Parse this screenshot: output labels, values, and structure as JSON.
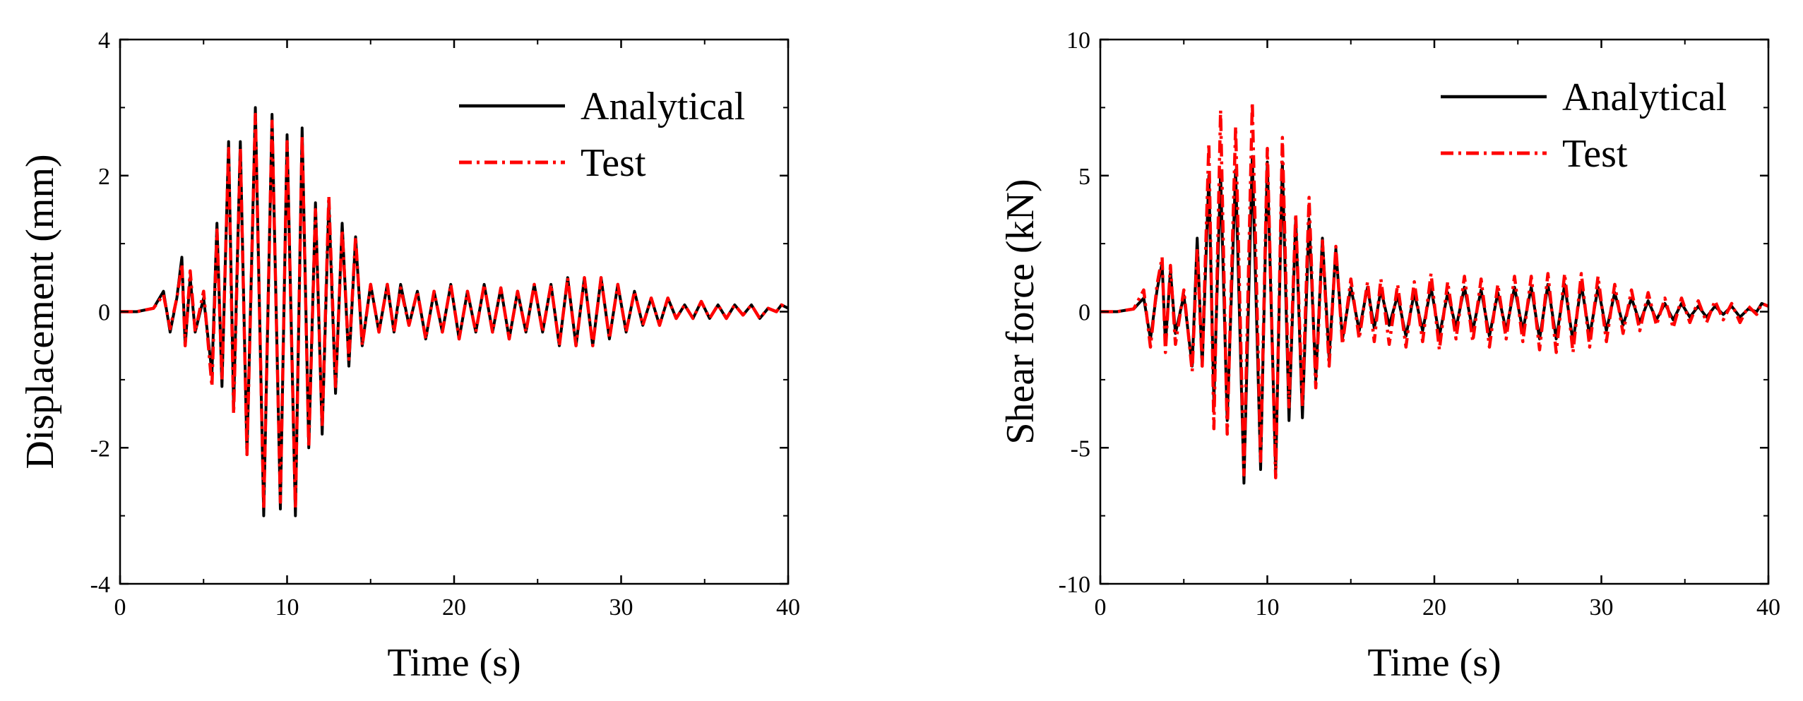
{
  "chart_data": [
    {
      "type": "line",
      "title": "",
      "xlabel": "Time (s)",
      "ylabel": "Displacement (mm)",
      "xlim": [
        0,
        40
      ],
      "ylim": [
        -4,
        4
      ],
      "xticks": [
        0,
        10,
        20,
        30,
        40
      ],
      "yticks": [
        -4,
        -2,
        0,
        2,
        4
      ],
      "grid": false,
      "legend_position": "top-right",
      "series": [
        {
          "name": "Analytical",
          "color": "#000000",
          "dash": "solid",
          "x": [
            0,
            1,
            2,
            2.6,
            3,
            3.4,
            3.7,
            3.9,
            4.2,
            4.5,
            5,
            5.5,
            5.8,
            6.1,
            6.5,
            6.8,
            7.2,
            7.6,
            8.1,
            8.6,
            9.1,
            9.6,
            10.0,
            10.5,
            10.9,
            11.3,
            11.7,
            12.1,
            12.5,
            12.9,
            13.3,
            13.7,
            14.1,
            14.5,
            15.0,
            15.5,
            16.0,
            16.4,
            16.8,
            17.3,
            17.8,
            18.3,
            18.8,
            19.3,
            19.8,
            20.3,
            20.8,
            21.3,
            21.8,
            22.3,
            22.8,
            23.3,
            23.8,
            24.3,
            24.8,
            25.3,
            25.8,
            26.3,
            26.8,
            27.3,
            27.8,
            28.3,
            28.8,
            29.3,
            29.8,
            30.3,
            30.8,
            31.3,
            31.8,
            32.3,
            32.8,
            33.3,
            33.8,
            34.3,
            34.8,
            35.3,
            35.8,
            36.3,
            36.8,
            37.3,
            37.8,
            38.3,
            38.8,
            39.3,
            39.6,
            40
          ],
          "y": [
            0,
            0,
            0.05,
            0.3,
            -0.3,
            0.2,
            0.8,
            -0.5,
            0.5,
            -0.3,
            0.2,
            -0.9,
            1.3,
            -1.1,
            2.5,
            -1.4,
            2.5,
            -2.1,
            3.0,
            -3.0,
            2.9,
            -2.9,
            2.6,
            -3.0,
            2.7,
            -2.0,
            1.6,
            -1.8,
            1.6,
            -1.2,
            1.3,
            -0.8,
            1.1,
            -0.5,
            0.4,
            -0.3,
            0.4,
            -0.3,
            0.4,
            -0.2,
            0.3,
            -0.4,
            0.3,
            -0.3,
            0.4,
            -0.4,
            0.3,
            -0.3,
            0.4,
            -0.3,
            0.35,
            -0.4,
            0.3,
            -0.3,
            0.4,
            -0.3,
            0.4,
            -0.5,
            0.5,
            -0.5,
            0.5,
            -0.5,
            0.5,
            -0.4,
            0.4,
            -0.3,
            0.3,
            -0.2,
            0.2,
            -0.2,
            0.2,
            -0.1,
            0.1,
            -0.1,
            0.15,
            -0.1,
            0.1,
            -0.1,
            0.1,
            -0.05,
            0.1,
            -0.1,
            0.05,
            0,
            0.1,
            0.05
          ]
        },
        {
          "name": "Test",
          "color": "#ff0000",
          "dash": "dash-dot",
          "x": [
            0,
            1,
            2,
            2.6,
            3,
            3.4,
            3.7,
            3.9,
            4.2,
            4.5,
            5,
            5.5,
            5.8,
            6.1,
            6.5,
            6.8,
            7.2,
            7.6,
            8.1,
            8.6,
            9.1,
            9.6,
            10.0,
            10.5,
            10.9,
            11.3,
            11.7,
            12.1,
            12.5,
            12.9,
            13.3,
            13.7,
            14.1,
            14.5,
            15.0,
            15.5,
            16.0,
            16.4,
            16.8,
            17.3,
            17.8,
            18.3,
            18.8,
            19.3,
            19.8,
            20.3,
            20.8,
            21.3,
            21.8,
            22.3,
            22.8,
            23.3,
            23.8,
            24.3,
            24.8,
            25.3,
            25.8,
            26.3,
            26.8,
            27.3,
            27.8,
            28.3,
            28.8,
            29.3,
            29.8,
            30.3,
            30.8,
            31.3,
            31.8,
            32.3,
            32.8,
            33.3,
            33.8,
            34.3,
            34.8,
            35.3,
            35.8,
            36.3,
            36.8,
            37.3,
            37.8,
            38.3,
            38.8,
            39.3,
            39.6,
            40
          ],
          "y": [
            0,
            0,
            0.05,
            0.25,
            -0.25,
            0.2,
            0.7,
            -0.5,
            0.6,
            -0.3,
            0.3,
            -1.1,
            1.2,
            -1.0,
            2.4,
            -1.5,
            2.4,
            -2.1,
            2.9,
            -2.9,
            2.8,
            -2.8,
            2.5,
            -2.9,
            2.6,
            -2.0,
            1.5,
            -1.7,
            1.7,
            -1.1,
            1.2,
            -0.7,
            1.1,
            -0.5,
            0.4,
            -0.3,
            0.4,
            -0.3,
            0.35,
            -0.2,
            0.3,
            -0.4,
            0.3,
            -0.3,
            0.4,
            -0.4,
            0.3,
            -0.3,
            0.4,
            -0.3,
            0.35,
            -0.4,
            0.3,
            -0.3,
            0.4,
            -0.3,
            0.4,
            -0.5,
            0.5,
            -0.5,
            0.5,
            -0.5,
            0.5,
            -0.4,
            0.4,
            -0.3,
            0.3,
            -0.2,
            0.2,
            -0.2,
            0.2,
            -0.1,
            0.1,
            -0.1,
            0.15,
            -0.1,
            0.1,
            -0.1,
            0.1,
            -0.05,
            0.1,
            -0.1,
            0.05,
            0,
            0.1,
            0.05
          ]
        }
      ]
    },
    {
      "type": "line",
      "title": "",
      "xlabel": "Time (s)",
      "ylabel": "Shear force (kN)",
      "xlim": [
        0,
        40
      ],
      "ylim": [
        -10,
        10
      ],
      "xticks": [
        0,
        10,
        20,
        30,
        40
      ],
      "yticks": [
        -10,
        -5,
        0,
        5,
        10
      ],
      "grid": false,
      "legend_position": "top-right",
      "series": [
        {
          "name": "Analytical",
          "color": "#000000",
          "dash": "solid",
          "x": [
            0,
            1,
            2,
            2.6,
            3,
            3.4,
            3.7,
            3.9,
            4.2,
            4.5,
            5,
            5.5,
            5.8,
            6.1,
            6.5,
            6.8,
            7.2,
            7.6,
            8.1,
            8.6,
            9.1,
            9.6,
            10.0,
            10.5,
            10.9,
            11.3,
            11.7,
            12.1,
            12.5,
            12.9,
            13.3,
            13.7,
            14.1,
            14.5,
            15.0,
            15.5,
            16.0,
            16.4,
            16.8,
            17.3,
            17.8,
            18.3,
            18.8,
            19.3,
            19.8,
            20.3,
            20.8,
            21.3,
            21.8,
            22.3,
            22.8,
            23.3,
            23.8,
            24.3,
            24.8,
            25.3,
            25.8,
            26.3,
            26.8,
            27.3,
            27.8,
            28.3,
            28.8,
            29.3,
            29.8,
            30.3,
            30.8,
            31.3,
            31.8,
            32.3,
            32.8,
            33.3,
            33.8,
            34.3,
            34.8,
            35.3,
            35.8,
            36.3,
            36.8,
            37.3,
            37.8,
            38.3,
            38.8,
            39.3,
            39.6,
            40
          ],
          "y": [
            0,
            0,
            0.1,
            0.5,
            -1.0,
            0.8,
            1.8,
            -1.2,
            1.5,
            -0.8,
            0.6,
            -2.0,
            2.7,
            -2.0,
            5.0,
            -3.3,
            5.1,
            -4.0,
            5.2,
            -6.3,
            5.7,
            -5.8,
            5.5,
            -5.9,
            5.5,
            -4.0,
            3.4,
            -3.9,
            3.4,
            -2.5,
            2.7,
            -1.7,
            2.3,
            -1.0,
            0.9,
            -0.7,
            0.9,
            -0.6,
            0.8,
            -0.5,
            0.6,
            -0.9,
            0.7,
            -0.7,
            0.9,
            -0.9,
            0.7,
            -0.6,
            0.9,
            -0.7,
            0.8,
            -0.9,
            0.7,
            -0.7,
            0.9,
            -0.7,
            0.9,
            -1.0,
            1.0,
            -1.0,
            1.0,
            -1.1,
            1.0,
            -0.9,
            0.9,
            -0.7,
            0.7,
            -0.5,
            0.5,
            -0.4,
            0.4,
            -0.3,
            0.3,
            -0.3,
            0.3,
            -0.2,
            0.2,
            -0.2,
            0.2,
            -0.1,
            0.2,
            -0.2,
            0.1,
            0,
            0.3,
            0.2
          ]
        },
        {
          "name": "Test",
          "color": "#ff0000",
          "dash": "dash-dot",
          "x": [
            0,
            1,
            2,
            2.6,
            3,
            3.4,
            3.7,
            3.9,
            4.2,
            4.5,
            5,
            5.5,
            5.8,
            6.1,
            6.5,
            6.8,
            7.2,
            7.6,
            8.1,
            8.6,
            9.1,
            9.6,
            10.0,
            10.5,
            10.9,
            11.3,
            11.7,
            12.1,
            12.5,
            12.9,
            13.3,
            13.7,
            14.1,
            14.5,
            15.0,
            15.5,
            16.0,
            16.4,
            16.8,
            17.3,
            17.8,
            18.3,
            18.8,
            19.3,
            19.8,
            20.3,
            20.8,
            21.3,
            21.8,
            22.3,
            22.8,
            23.3,
            23.8,
            24.3,
            24.8,
            25.3,
            25.8,
            26.3,
            26.8,
            27.3,
            27.8,
            28.3,
            28.8,
            29.3,
            29.8,
            30.3,
            30.8,
            31.3,
            31.8,
            32.3,
            32.8,
            33.3,
            33.8,
            34.3,
            34.8,
            35.3,
            35.8,
            36.3,
            36.8,
            37.3,
            37.8,
            38.3,
            38.8,
            39.3,
            39.6,
            40
          ],
          "y": [
            0,
            0,
            0.1,
            0.8,
            -1.3,
            1.0,
            2.0,
            -1.5,
            1.7,
            -1.2,
            0.8,
            -2.2,
            2.3,
            -2.0,
            6.2,
            -4.3,
            7.4,
            -4.5,
            6.8,
            -6.0,
            7.7,
            -5.5,
            6.0,
            -6.1,
            6.4,
            -3.5,
            3.6,
            -3.5,
            4.2,
            -2.8,
            2.6,
            -2.0,
            2.4,
            -1.2,
            1.2,
            -1.0,
            1.1,
            -1.1,
            1.2,
            -1.2,
            1.0,
            -1.3,
            1.1,
            -1.1,
            1.4,
            -1.4,
            1.1,
            -1.0,
            1.3,
            -1.1,
            1.2,
            -1.3,
            1.0,
            -1.0,
            1.3,
            -1.1,
            1.3,
            -1.4,
            1.4,
            -1.5,
            1.4,
            -1.5,
            1.4,
            -1.3,
            1.3,
            -1.1,
            1.0,
            -0.8,
            0.8,
            -0.7,
            0.7,
            -0.5,
            0.5,
            -0.6,
            0.5,
            -0.4,
            0.4,
            -0.4,
            0.4,
            -0.3,
            0.3,
            -0.4,
            0.2,
            -0.1,
            0.3,
            0.2
          ]
        }
      ]
    }
  ]
}
